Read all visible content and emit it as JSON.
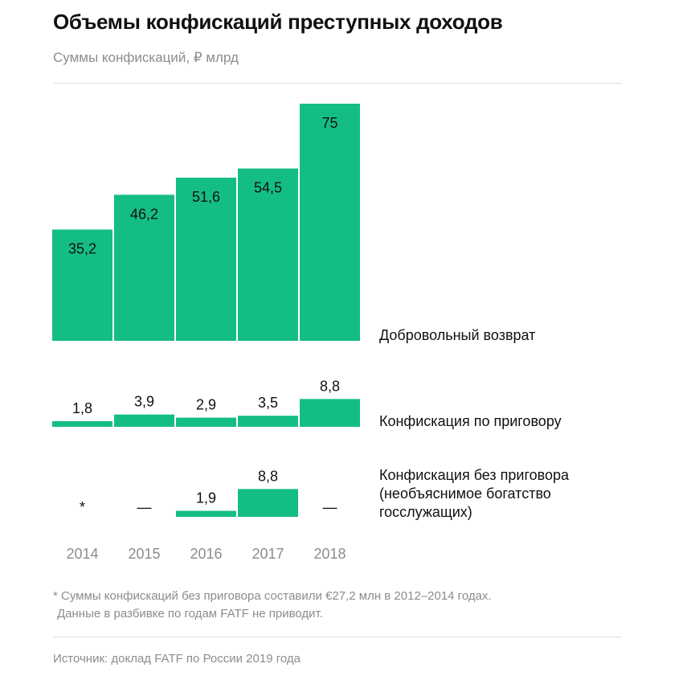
{
  "header": {
    "title": "Объемы конфискаций преступных доходов",
    "subtitle": "Суммы конфискаций, ₽ млрд"
  },
  "footnote": {
    "line1": "* Суммы конфискаций без приговора составили €27,2 млн в 2012–2014 годах.",
    "line2": "Данные в разбивке по годам FATF не приводит."
  },
  "source": "Источник: доклад FATF по России 2019 года",
  "colors": {
    "bar": "#15bd86",
    "text": "#111111",
    "muted": "#8c8c8c"
  },
  "chart_data": {
    "type": "bar",
    "categories": [
      "2014",
      "2015",
      "2016",
      "2017",
      "2018"
    ],
    "grid": false,
    "panels": [
      {
        "name": "Добровольный возврат",
        "values": [
          35.2,
          46.2,
          51.6,
          54.5,
          75
        ],
        "labels": [
          "35,2",
          "46,2",
          "51,6",
          "54,5",
          "75"
        ]
      },
      {
        "name": "Конфискация по приговору",
        "values": [
          1.8,
          3.9,
          2.9,
          3.5,
          8.8
        ],
        "labels": [
          "1,8",
          "3,9",
          "2,9",
          "3,5",
          "8,8"
        ]
      },
      {
        "name_lines": [
          "Конфискация без приговора",
          "(необъяснимое богатство",
          "госслужащих)"
        ],
        "values": [
          null,
          null,
          1.9,
          8.8,
          null
        ],
        "labels": [
          "*",
          "—",
          "1,9",
          "8,8",
          "—"
        ]
      }
    ]
  }
}
